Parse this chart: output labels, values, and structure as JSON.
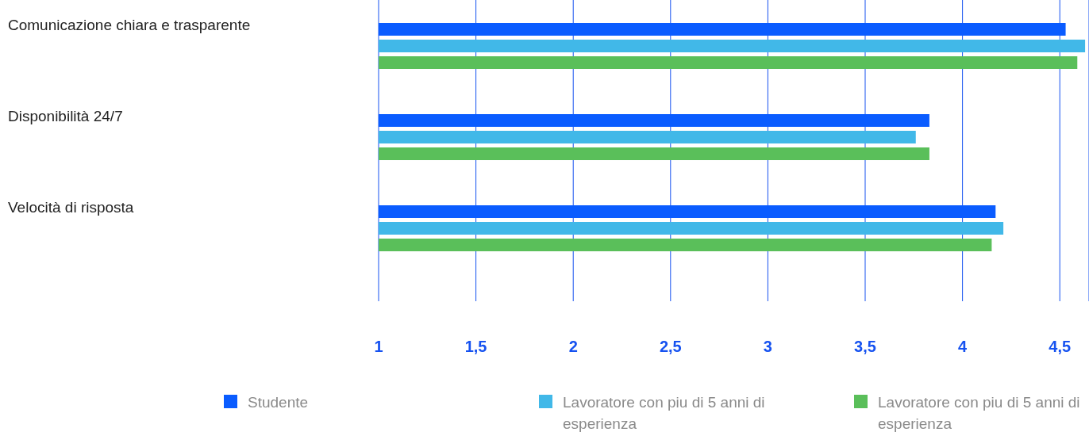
{
  "chart_data": {
    "type": "bar",
    "orientation": "horizontal",
    "categories": [
      "Comunicazione chiara e trasparente",
      "Disponibilità 24/7",
      "Velocità di risposta"
    ],
    "series": [
      {
        "name": "Studente",
        "color": "#0a5cff",
        "values": [
          4.53,
          3.83,
          4.17
        ]
      },
      {
        "name": "Lavoratore con piu di 5 anni di esperienza",
        "color": "#41b8e8",
        "values": [
          4.63,
          3.76,
          4.21
        ]
      },
      {
        "name": "Lavoratore con piu di 5 anni di esperienza",
        "color": "#5abf5a",
        "values": [
          4.59,
          3.83,
          4.15
        ]
      }
    ],
    "xlim": [
      1,
      4.65
    ],
    "xticks": [
      1,
      {
        "value": 1.5,
        "label": "1,5"
      },
      2,
      {
        "value": 2.5,
        "label": "2,5"
      },
      3,
      {
        "value": 3.5,
        "label": "3,5"
      },
      4,
      {
        "value": 4.5,
        "label": "4,5"
      }
    ],
    "grid": "x",
    "legend": "bottom"
  }
}
